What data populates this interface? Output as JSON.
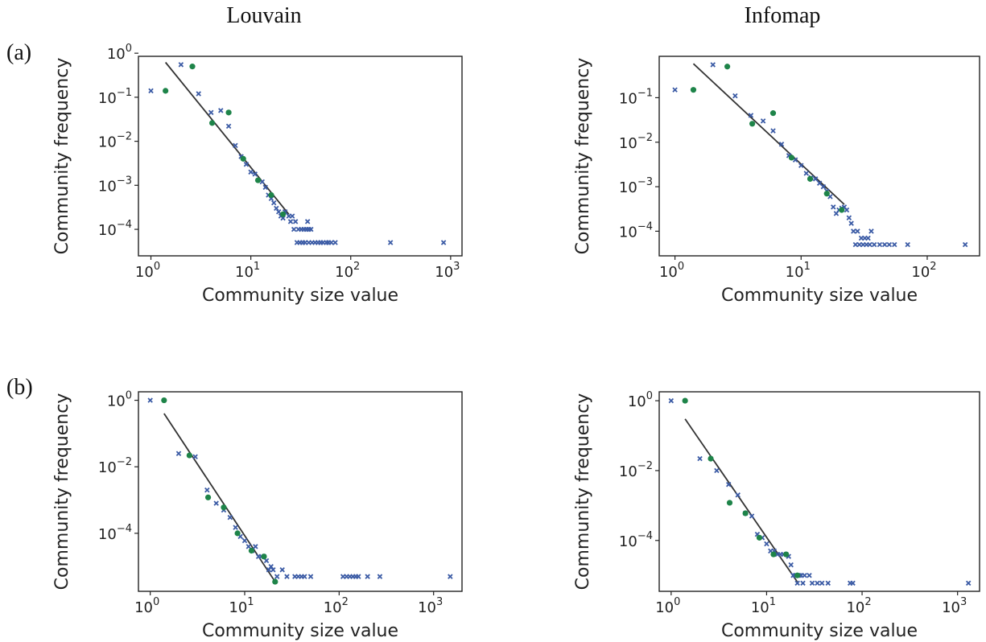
{
  "column_titles": [
    "Louvain",
    "Infomap"
  ],
  "row_labels": [
    "(a)",
    "(b)"
  ],
  "colors": {
    "all_data": "#3b5ba5",
    "binned": "#1e8449",
    "fit": "#333333"
  },
  "chart_data": [
    {
      "type": "scatter",
      "row": "(a)",
      "column": "Louvain",
      "xlabel": "Community size value",
      "ylabel": "Community frequency",
      "xscale": "log",
      "yscale": "log",
      "xlim": [
        0.75,
        1300
      ],
      "ylim": [
        2.5e-05,
        0.85
      ],
      "xticks": [
        {
          "base": "10",
          "exp": "0"
        },
        {
          "base": "10",
          "exp": "1"
        },
        {
          "base": "10",
          "exp": "2"
        },
        {
          "base": "10",
          "exp": "3"
        }
      ],
      "xtick_values": [
        1,
        10,
        100,
        1000
      ],
      "yticks": [
        {
          "base": "10",
          "exp": "0"
        },
        {
          "base": "10",
          "exp": "−1"
        },
        {
          "base": "10",
          "exp": "−2"
        },
        {
          "base": "10",
          "exp": "−3"
        },
        {
          "base": "10",
          "exp": "−4"
        }
      ],
      "ytick_values": [
        1,
        0.1,
        0.01,
        0.001,
        0.0001
      ],
      "series": [
        {
          "marker": "x",
          "points": [
            [
              1,
              0.14
            ],
            [
              2,
              0.55
            ],
            [
              3,
              0.12
            ],
            [
              4,
              0.045
            ],
            [
              5,
              0.05
            ],
            [
              6,
              0.022
            ],
            [
              7,
              0.008
            ],
            [
              8,
              0.0045
            ],
            [
              9,
              0.003
            ],
            [
              10,
              0.002
            ],
            [
              11,
              0.0018
            ],
            [
              13,
              0.0012
            ],
            [
              14,
              0.0009
            ],
            [
              15,
              0.0006
            ],
            [
              16,
              0.0005
            ],
            [
              17,
              0.0004
            ],
            [
              18,
              0.0003
            ],
            [
              19,
              0.00025
            ],
            [
              20,
              0.0002
            ],
            [
              21,
              0.00018
            ],
            [
              22,
              0.00025
            ],
            [
              24,
              0.0002
            ],
            [
              25,
              0.00015
            ],
            [
              27,
              0.0001
            ],
            [
              28,
              0.00015
            ],
            [
              30,
              0.0001
            ],
            [
              32,
              0.0001
            ],
            [
              34,
              0.0001
            ],
            [
              36,
              0.0001
            ],
            [
              38,
              0.0001
            ],
            [
              40,
              0.0001
            ],
            [
              26,
              0.0002
            ],
            [
              29,
              5e-05
            ],
            [
              31,
              5e-05
            ],
            [
              33,
              5e-05
            ],
            [
              35,
              5e-05
            ],
            [
              38,
              5e-05
            ],
            [
              41,
              5e-05
            ],
            [
              44,
              5e-05
            ],
            [
              47,
              5e-05
            ],
            [
              50,
              5e-05
            ],
            [
              53,
              5e-05
            ],
            [
              57,
              5e-05
            ],
            [
              60,
              5e-05
            ],
            [
              64,
              5e-05
            ],
            [
              70,
              5e-05
            ],
            [
              37,
              0.00015
            ],
            [
              250,
              5e-05
            ],
            [
              850,
              5e-05
            ]
          ]
        },
        {
          "marker": "o",
          "points": [
            [
              1.4,
              0.14
            ],
            [
              2.6,
              0.5
            ],
            [
              4.1,
              0.026
            ],
            [
              6,
              0.045
            ],
            [
              8.4,
              0.004
            ],
            [
              11.8,
              0.0013
            ],
            [
              16,
              0.0006
            ],
            [
              21,
              0.00022
            ]
          ]
        }
      ],
      "fit_line": [
        [
          1.4,
          0.62
        ],
        [
          24,
          0.00022
        ]
      ]
    },
    {
      "type": "scatter",
      "row": "(a)",
      "column": "Infomap",
      "xlabel": "Community size value",
      "ylabel": "Community frequency",
      "xscale": "log",
      "yscale": "log",
      "xlim": [
        0.75,
        260
      ],
      "ylim": [
        2.8e-05,
        0.85
      ],
      "xticks": [
        {
          "base": "10",
          "exp": "0"
        },
        {
          "base": "10",
          "exp": "1"
        },
        {
          "base": "10",
          "exp": "2"
        }
      ],
      "xtick_values": [
        1,
        10,
        100
      ],
      "yticks": [
        {
          "base": "10",
          "exp": "−1"
        },
        {
          "base": "10",
          "exp": "−2"
        },
        {
          "base": "10",
          "exp": "−3"
        },
        {
          "base": "10",
          "exp": "−4"
        }
      ],
      "ytick_values": [
        0.1,
        0.01,
        0.001,
        0.0001
      ],
      "series": [
        {
          "marker": "x",
          "points": [
            [
              1,
              0.15
            ],
            [
              2,
              0.55
            ],
            [
              3,
              0.11
            ],
            [
              4,
              0.04
            ],
            [
              5,
              0.03
            ],
            [
              6,
              0.018
            ],
            [
              7,
              0.009
            ],
            [
              8,
              0.005
            ],
            [
              9,
              0.004
            ],
            [
              10,
              0.003
            ],
            [
              11,
              0.002
            ],
            [
              12,
              0.0016
            ],
            [
              13,
              0.0015
            ],
            [
              14,
              0.0012
            ],
            [
              15,
              0.001
            ],
            [
              16,
              0.0008
            ],
            [
              17,
              0.0006
            ],
            [
              18,
              0.00035
            ],
            [
              19,
              0.00025
            ],
            [
              20,
              0.0003
            ],
            [
              21,
              0.00033
            ],
            [
              22,
              0.00035
            ],
            [
              23,
              0.0003
            ],
            [
              24,
              0.0002
            ],
            [
              25,
              0.00015
            ],
            [
              26,
              0.0001
            ],
            [
              28,
              0.0001
            ],
            [
              30,
              7e-05
            ],
            [
              32,
              7e-05
            ],
            [
              34,
              7e-05
            ],
            [
              36,
              0.0001
            ],
            [
              27,
              5e-05
            ],
            [
              29,
              5e-05
            ],
            [
              31,
              5e-05
            ],
            [
              33,
              5e-05
            ],
            [
              35,
              5e-05
            ],
            [
              38,
              5e-05
            ],
            [
              42,
              5e-05
            ],
            [
              46,
              5e-05
            ],
            [
              50,
              5e-05
            ],
            [
              55,
              5e-05
            ],
            [
              70,
              5e-05
            ],
            [
              200,
              5e-05
            ]
          ]
        },
        {
          "marker": "o",
          "points": [
            [
              1.4,
              0.15
            ],
            [
              2.6,
              0.5
            ],
            [
              4.1,
              0.026
            ],
            [
              6,
              0.045
            ],
            [
              8.4,
              0.0045
            ],
            [
              11.8,
              0.0015
            ],
            [
              16,
              0.0007
            ],
            [
              21,
              0.0003
            ]
          ]
        }
      ],
      "fit_line": [
        [
          1.4,
          0.58
        ],
        [
          22,
          0.0004
        ]
      ]
    },
    {
      "type": "scatter",
      "row": "(b)",
      "column": "Louvain",
      "xlabel": "Community size value",
      "ylabel": "Community frequency",
      "xscale": "log",
      "yscale": "log",
      "xlim": [
        0.75,
        2000
      ],
      "ylim": [
        1.8e-06,
        1.8
      ],
      "xticks": [
        {
          "base": "10",
          "exp": "0"
        },
        {
          "base": "10",
          "exp": "1"
        },
        {
          "base": "10",
          "exp": "2"
        },
        {
          "base": "10",
          "exp": "3"
        }
      ],
      "xtick_values": [
        1,
        10,
        100,
        1000
      ],
      "yticks": [
        {
          "base": "10",
          "exp": "0"
        },
        {
          "base": "10",
          "exp": "−2"
        },
        {
          "base": "10",
          "exp": "−4"
        }
      ],
      "ytick_values": [
        1,
        0.01,
        0.0001
      ],
      "series": [
        {
          "marker": "x",
          "points": [
            [
              1,
              1.0
            ],
            [
              2,
              0.025
            ],
            [
              3,
              0.02
            ],
            [
              4,
              0.002
            ],
            [
              5,
              0.0008
            ],
            [
              6,
              0.0005
            ],
            [
              7,
              0.0003
            ],
            [
              8,
              0.00015
            ],
            [
              9,
              8e-05
            ],
            [
              10,
              6e-05
            ],
            [
              11,
              4e-05
            ],
            [
              12,
              3e-05
            ],
            [
              13,
              4e-05
            ],
            [
              14,
              2e-05
            ],
            [
              15,
              2e-05
            ],
            [
              16,
              2e-05
            ],
            [
              17,
              1.5e-05
            ],
            [
              18,
              8e-06
            ],
            [
              19,
              1e-05
            ],
            [
              20,
              8e-06
            ],
            [
              22,
              5e-06
            ],
            [
              25,
              8e-06
            ],
            [
              28,
              5e-06
            ],
            [
              34,
              5e-06
            ],
            [
              37,
              5e-06
            ],
            [
              40,
              5e-06
            ],
            [
              43,
              5e-06
            ],
            [
              50,
              5e-06
            ],
            [
              110,
              5e-06
            ],
            [
              120,
              5e-06
            ],
            [
              130,
              5e-06
            ],
            [
              140,
              5e-06
            ],
            [
              150,
              5e-06
            ],
            [
              160,
              5e-06
            ],
            [
              200,
              5e-06
            ],
            [
              270,
              5e-06
            ],
            [
              1500,
              5e-06
            ]
          ]
        },
        {
          "marker": "o",
          "points": [
            [
              1.4,
              1.0
            ],
            [
              2.6,
              0.022
            ],
            [
              4.1,
              0.0012
            ],
            [
              6,
              0.0006
            ],
            [
              8.4,
              0.0001
            ],
            [
              11.8,
              3e-05
            ],
            [
              16,
              2e-05
            ],
            [
              21,
              3.5e-06
            ]
          ]
        }
      ],
      "fit_line": [
        [
          1.4,
          0.4
        ],
        [
          21,
          3.5e-06
        ]
      ]
    },
    {
      "type": "scatter",
      "row": "(b)",
      "column": "Infomap",
      "xlabel": "Community size value",
      "ylabel": "Community frequency",
      "xscale": "log",
      "yscale": "log",
      "xlim": [
        0.75,
        1700
      ],
      "ylim": [
        3.5e-06,
        1.8
      ],
      "xticks": [
        {
          "base": "10",
          "exp": "0"
        },
        {
          "base": "10",
          "exp": "1"
        },
        {
          "base": "10",
          "exp": "2"
        },
        {
          "base": "10",
          "exp": "3"
        }
      ],
      "xtick_values": [
        1,
        10,
        100,
        1000
      ],
      "yticks": [
        {
          "base": "10",
          "exp": "0"
        },
        {
          "base": "10",
          "exp": "−2"
        },
        {
          "base": "10",
          "exp": "−4"
        }
      ],
      "ytick_values": [
        1,
        0.01,
        0.0001
      ],
      "series": [
        {
          "marker": "x",
          "points": [
            [
              1,
              1.0
            ],
            [
              2,
              0.022
            ],
            [
              3,
              0.01
            ],
            [
              4,
              0.004
            ],
            [
              5,
              0.002
            ],
            [
              6,
              0.0006
            ],
            [
              7,
              0.0005
            ],
            [
              8,
              0.00015
            ],
            [
              9,
              0.00012
            ],
            [
              10,
              8e-05
            ],
            [
              11,
              5e-05
            ],
            [
              12,
              5e-05
            ],
            [
              13,
              4e-05
            ],
            [
              14,
              4e-05
            ],
            [
              15,
              4e-05
            ],
            [
              16,
              4e-05
            ],
            [
              17,
              3.5e-05
            ],
            [
              18,
              2e-05
            ],
            [
              19,
              1e-05
            ],
            [
              20,
              1e-05
            ],
            [
              22,
              1e-05
            ],
            [
              23,
              1e-05
            ],
            [
              25,
              1e-05
            ],
            [
              28,
              1e-05
            ],
            [
              21,
              6e-06
            ],
            [
              24,
              6e-06
            ],
            [
              30,
              6e-06
            ],
            [
              34,
              6e-06
            ],
            [
              38,
              6e-06
            ],
            [
              44,
              6e-06
            ],
            [
              75,
              6e-06
            ],
            [
              80,
              6e-06
            ],
            [
              1300,
              6e-06
            ]
          ]
        },
        {
          "marker": "o",
          "points": [
            [
              1.4,
              1.0
            ],
            [
              2.6,
              0.022
            ],
            [
              4.1,
              0.0012
            ],
            [
              6,
              0.0006
            ],
            [
              8.4,
              0.00012
            ],
            [
              11.8,
              4e-05
            ],
            [
              16,
              4e-05
            ],
            [
              21,
              1e-05
            ]
          ]
        }
      ],
      "fit_line": [
        [
          1.4,
          0.3
        ],
        [
          21,
          6.5e-06
        ]
      ]
    }
  ]
}
